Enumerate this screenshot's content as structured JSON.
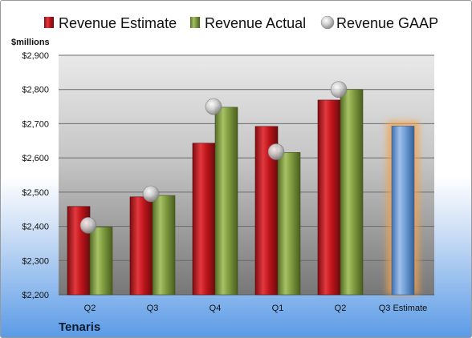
{
  "chart_data": {
    "type": "bar",
    "title": "",
    "company": "Tenaris",
    "unit_label": "$millions",
    "categories": [
      "Q2",
      "Q3",
      "Q4",
      "Q1",
      "Q2",
      "Q3 Estimate"
    ],
    "series": [
      {
        "name": "Revenue Estimate",
        "values": [
          2458,
          2486,
          2643,
          2692,
          2769,
          2693
        ],
        "color": "#c0161c"
      },
      {
        "name": "Revenue Actual",
        "values": [
          2398,
          2490,
          2748,
          2616,
          2800,
          null
        ],
        "color": "#7f9b3f"
      },
      {
        "name": "Revenue GAAP",
        "values": [
          2403,
          2495,
          2750,
          2618,
          2800,
          null
        ],
        "color": "#b8b8b8"
      }
    ],
    "highlight_color": "#6f9fd8",
    "ylim": [
      2200,
      2900
    ],
    "ytick_labels": [
      "$2,200",
      "$2,300",
      "$2,400",
      "$2,500",
      "$2,600",
      "$2,700",
      "$2,800",
      "$2,900"
    ],
    "grid": true,
    "legend": "top"
  }
}
